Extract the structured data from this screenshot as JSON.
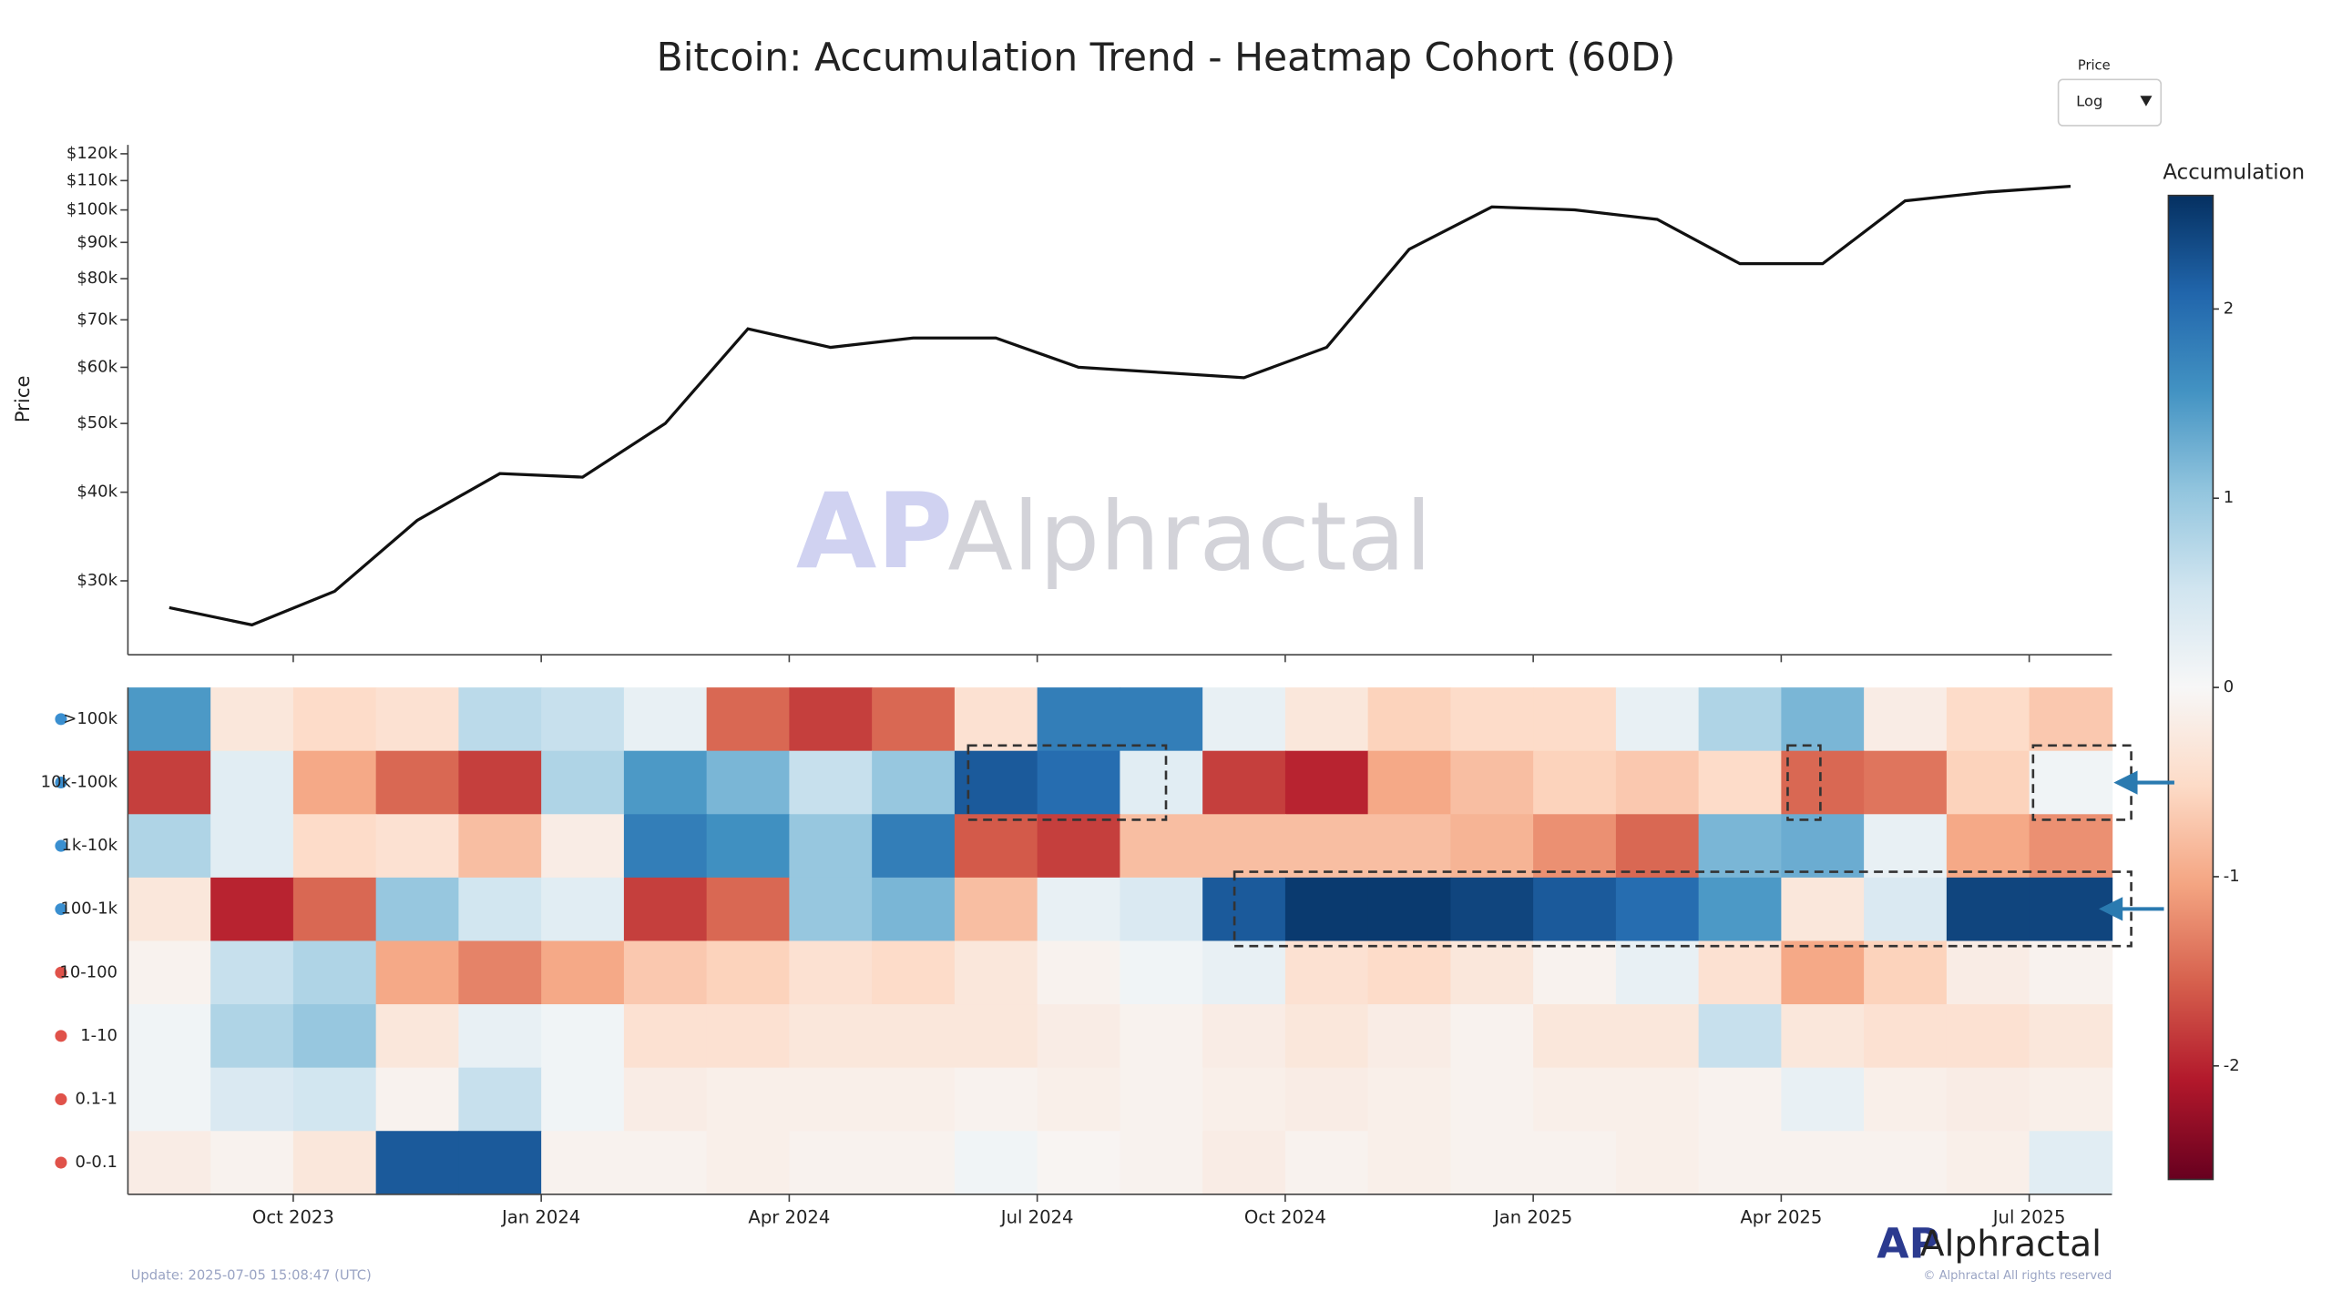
{
  "title": "Bitcoin: Accumulation Trend - Heatmap Cohort (60D)",
  "dropdown": {
    "label": "Price",
    "value": "Log"
  },
  "watermark": "Alphractal",
  "logo": "Alphractal",
  "copyright": "© Alphractal All rights reserved",
  "update": "Update: 2025-07-05 15:08:47 (UTC)",
  "chart_data": [
    {
      "type": "line",
      "y_label": "Price",
      "log_scale": true,
      "xlim": [
        "2023-08",
        "2025-07"
      ],
      "x": [
        "2023-08",
        "2023-09",
        "2023-10",
        "2023-11",
        "2023-12",
        "2024-01",
        "2024-02",
        "2024-03",
        "2024-04",
        "2024-05",
        "2024-06",
        "2024-07",
        "2024-08",
        "2024-09",
        "2024-10",
        "2024-11",
        "2024-12",
        "2025-01",
        "2025-02",
        "2025-03",
        "2025-04",
        "2025-05",
        "2025-06",
        "2025-07"
      ],
      "series": [
        {
          "name": "Price",
          "color": "#111111",
          "values": [
            27500,
            26000,
            29000,
            36500,
            42500,
            42000,
            50000,
            68000,
            64000,
            66000,
            66000,
            60000,
            59000,
            58000,
            64000,
            88000,
            101000,
            100000,
            97000,
            84000,
            84000,
            103000,
            106000,
            108000
          ]
        }
      ],
      "ylim": [
        23600,
        123500
      ],
      "yticks": [
        {
          "value": 30000,
          "label": "$30k"
        },
        {
          "value": 40000,
          "label": "$40k"
        },
        {
          "value": 50000,
          "label": "$50k"
        },
        {
          "value": 60000,
          "label": "$60k"
        },
        {
          "value": 70000,
          "label": "$70k"
        },
        {
          "value": 80000,
          "label": "$80k"
        },
        {
          "value": 90000,
          "label": "$90k"
        },
        {
          "value": 100000,
          "label": "$100k"
        },
        {
          "value": 110000,
          "label": "$110k"
        },
        {
          "value": 120000,
          "label": "$120k"
        }
      ]
    },
    {
      "type": "heatmap",
      "colorbar_title": "Accumulation",
      "xlim": [
        "2023-08",
        "2025-07"
      ],
      "x": [
        "2023-08",
        "2023-09",
        "2023-10",
        "2023-11",
        "2023-12",
        "2024-01",
        "2024-02",
        "2024-03",
        "2024-04",
        "2024-05",
        "2024-06",
        "2024-07",
        "2024-08",
        "2024-09",
        "2024-10",
        "2024-11",
        "2024-12",
        "2025-01",
        "2025-02",
        "2025-03",
        "2025-04",
        "2025-05",
        "2025-06",
        "2025-07"
      ],
      "xticks": [
        {
          "value": "2023-10",
          "label": "Oct 2023"
        },
        {
          "value": "2024-01",
          "label": "Jan 2024"
        },
        {
          "value": "2024-04",
          "label": "Apr 2024"
        },
        {
          "value": "2024-07",
          "label": "Jul 2024"
        },
        {
          "value": "2024-10",
          "label": "Oct 2024"
        },
        {
          "value": "2025-01",
          "label": "Jan 2025"
        },
        {
          "value": "2025-04",
          "label": "Apr 2025"
        },
        {
          "value": "2025-07",
          "label": "Jul 2025"
        }
      ],
      "categories": [
        ">100k",
        "10k-100k",
        "1k-10k",
        "100-1k",
        "10-100",
        "1-10",
        "0.1-1",
        "0-0.1"
      ],
      "z": [
        [
          1.5,
          -0.3,
          -0.5,
          -0.4,
          0.7,
          0.6,
          0.2,
          -1.5,
          -1.8,
          -1.5,
          -0.4,
          1.8,
          1.8,
          0.2,
          -0.3,
          -0.6,
          -0.5,
          -0.5,
          0.2,
          0.8,
          1.2,
          -0.2,
          -0.5,
          -0.7
        ],
        [
          -1.8,
          0.3,
          -1.0,
          -1.5,
          -1.8,
          0.8,
          1.5,
          1.2,
          0.6,
          1.0,
          2.2,
          2.0,
          0.3,
          -1.8,
          -2.0,
          -1.0,
          -0.8,
          -0.6,
          -0.7,
          -0.5,
          -1.5,
          -1.4,
          -0.6,
          0.1
        ],
        [
          0.8,
          0.3,
          -0.5,
          -0.4,
          -0.8,
          -0.2,
          1.8,
          1.6,
          1.0,
          1.8,
          -1.6,
          -1.8,
          -0.8,
          -0.8,
          -0.8,
          -0.8,
          -0.9,
          -1.2,
          -1.5,
          1.2,
          1.3,
          0.2,
          -1.0,
          -1.2
        ],
        [
          -0.3,
          -2.0,
          -1.5,
          1.0,
          0.5,
          0.3,
          -1.8,
          -1.5,
          1.0,
          1.2,
          -0.8,
          0.2,
          0.4,
          2.2,
          2.5,
          2.5,
          2.4,
          2.2,
          2.0,
          1.5,
          -0.3,
          0.4,
          2.4,
          2.4
        ],
        [
          -0.1,
          0.6,
          0.8,
          -1.0,
          -1.3,
          -1.0,
          -0.7,
          -0.6,
          -0.4,
          -0.5,
          -0.3,
          -0.1,
          0.1,
          0.2,
          -0.4,
          -0.5,
          -0.3,
          -0.1,
          0.2,
          -0.4,
          -1.0,
          -0.6,
          -0.2,
          -0.1
        ],
        [
          0.1,
          0.8,
          1.0,
          -0.3,
          0.2,
          0.1,
          -0.4,
          -0.4,
          -0.3,
          -0.3,
          -0.3,
          -0.2,
          -0.1,
          -0.2,
          -0.3,
          -0.2,
          -0.1,
          -0.3,
          -0.3,
          0.6,
          -0.3,
          -0.4,
          -0.4,
          -0.3
        ],
        [
          0.1,
          0.4,
          0.5,
          -0.1,
          0.6,
          0.1,
          -0.2,
          -0.15,
          -0.15,
          -0.15,
          -0.1,
          -0.15,
          -0.1,
          -0.15,
          -0.2,
          -0.15,
          -0.1,
          -0.15,
          -0.15,
          -0.1,
          0.2,
          -0.15,
          -0.2,
          -0.15
        ],
        [
          -0.2,
          -0.1,
          -0.3,
          2.2,
          2.2,
          -0.1,
          -0.1,
          -0.15,
          -0.1,
          -0.1,
          0.1,
          -0.05,
          -0.1,
          -0.2,
          -0.1,
          -0.15,
          -0.1,
          -0.1,
          -0.15,
          -0.1,
          -0.1,
          -0.1,
          -0.15,
          0.3
        ]
      ],
      "zlim": [
        -2.6,
        2.6
      ],
      "zticks": [
        -2,
        -1,
        0,
        1,
        2
      ],
      "colorscale": [
        "#67001f",
        "#b2182b",
        "#d6604d",
        "#f4a582",
        "#fddbc7",
        "#f7f7f7",
        "#d1e5f0",
        "#92c5de",
        "#4393c3",
        "#2166ac",
        "#053061"
      ]
    }
  ]
}
